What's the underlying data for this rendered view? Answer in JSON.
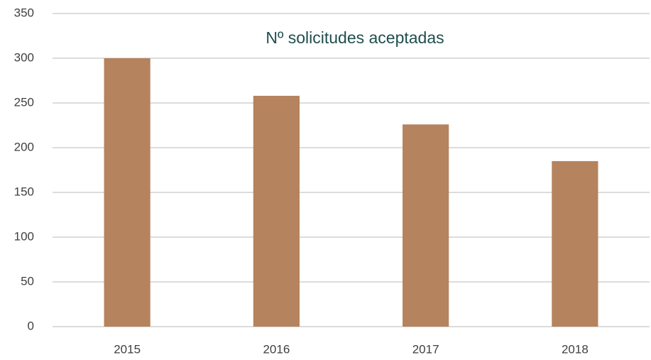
{
  "chart_data": {
    "type": "bar",
    "title": "Nº solicitudes aceptadas",
    "categories": [
      "2015",
      "2016",
      "2017",
      "2018"
    ],
    "values": [
      300,
      258,
      226,
      185
    ],
    "color": "#b5835e",
    "ylim": [
      0,
      350
    ],
    "yticks": [
      0,
      50,
      100,
      150,
      200,
      250,
      300,
      350
    ],
    "grid": true
  }
}
